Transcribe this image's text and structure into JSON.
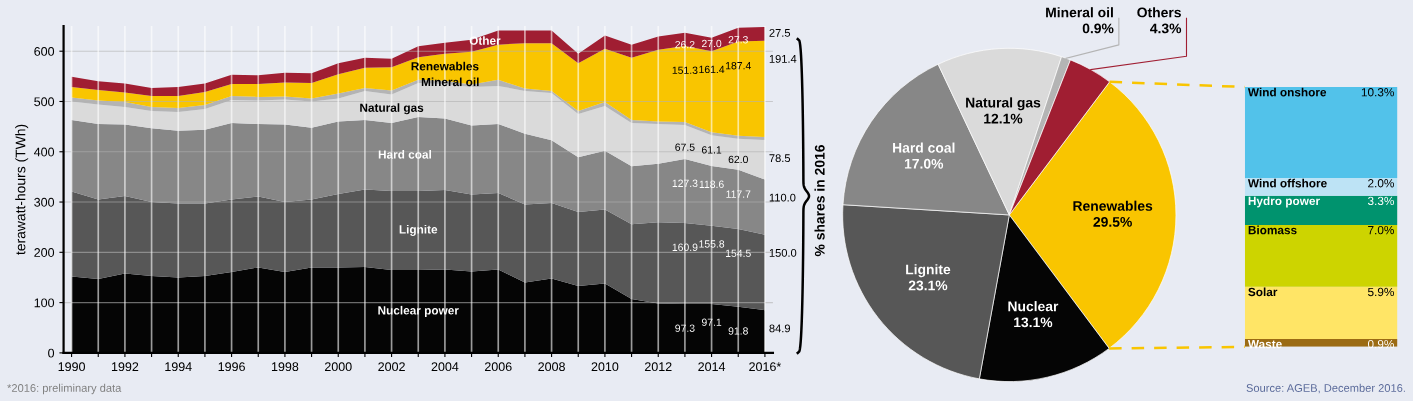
{
  "chart_data": [
    {
      "type": "area",
      "stacked": true,
      "ylabel": "terawatt-hours (TWh)",
      "grid": true,
      "legend": false,
      "categories": [
        "1990",
        null,
        "1992",
        null,
        "1994",
        null,
        "1996",
        null,
        "1998",
        null,
        "2000",
        null,
        "2002",
        null,
        "2004",
        null,
        "2006",
        null,
        "2008",
        null,
        "2010",
        null,
        "2012",
        null,
        "2014",
        null,
        "2016*"
      ],
      "ylim": [
        0,
        650
      ],
      "yticks": [
        0,
        100,
        200,
        300,
        400,
        500,
        600
      ],
      "series": [
        {
          "name": "Nuclear power",
          "color": "#050505",
          "values": [
            152,
            147,
            158,
            153,
            150,
            153,
            161,
            170,
            161,
            170,
            170,
            171,
            165,
            165,
            166,
            162,
            166,
            140,
            148,
            133,
            138,
            107,
            98,
            97.3,
            97.1,
            91.8,
            84.9
          ],
          "value_labels": [
            null,
            null,
            null,
            null,
            null,
            null,
            null,
            null,
            null,
            null,
            null,
            null,
            null,
            null,
            null,
            null,
            null,
            null,
            null,
            null,
            null,
            null,
            null,
            "97.3",
            "97.1",
            "91.8",
            "84.9"
          ]
        },
        {
          "name": "Lignite",
          "color": "#575757",
          "values": [
            169,
            158,
            154,
            147,
            147,
            144,
            144,
            141,
            139,
            135,
            146,
            154,
            157,
            157,
            158,
            153,
            152,
            155,
            150,
            147,
            147,
            149,
            162,
            160.9,
            155.8,
            154.5,
            150.0
          ],
          "value_labels": [
            null,
            null,
            null,
            null,
            null,
            null,
            null,
            null,
            null,
            null,
            null,
            null,
            null,
            null,
            null,
            null,
            null,
            null,
            null,
            null,
            null,
            null,
            null,
            "160.9",
            "155.8",
            "154.5",
            "150.0"
          ]
        },
        {
          "name": "Hard coal",
          "color": "#878787",
          "values": [
            142,
            150,
            142,
            147,
            145,
            147,
            152,
            144,
            154,
            143,
            144,
            138,
            135,
            147,
            142,
            137,
            137,
            141,
            125,
            109,
            117,
            115,
            116,
            127.3,
            118.6,
            117.7,
            110.0
          ],
          "value_labels": [
            null,
            null,
            null,
            null,
            null,
            null,
            null,
            null,
            null,
            null,
            null,
            null,
            null,
            null,
            null,
            null,
            null,
            null,
            null,
            null,
            null,
            null,
            null,
            "127.3",
            "118.6",
            "117.7",
            "110.0"
          ]
        },
        {
          "name": "Natural gas",
          "color": "#dadada",
          "values": [
            37,
            39,
            35,
            34,
            37,
            41,
            46,
            47,
            50,
            52,
            46,
            58,
            57,
            68,
            69,
            77,
            76,
            85,
            94,
            86,
            89,
            86,
            79,
            67.5,
            61.1,
            62.0,
            78.5
          ],
          "value_labels": [
            null,
            null,
            null,
            null,
            null,
            null,
            null,
            null,
            null,
            null,
            null,
            null,
            null,
            null,
            null,
            null,
            null,
            null,
            null,
            null,
            null,
            null,
            null,
            "67.5",
            "61.1",
            "62.0",
            "78.5"
          ]
        },
        {
          "name": "Mineral oil",
          "color": "#b4b4b4",
          "values": [
            8,
            8,
            10,
            8,
            8,
            8,
            8,
            7,
            6,
            6,
            10,
            6,
            8,
            6,
            6,
            5,
            12,
            5,
            4,
            6,
            8,
            6,
            5,
            6,
            6,
            6,
            6
          ]
        },
        {
          "name": "Renewables",
          "color": "#f9c500",
          "values": [
            21,
            21,
            19,
            22,
            24,
            26,
            24,
            26,
            28,
            31,
            38,
            40,
            46,
            45,
            54,
            65,
            70,
            90,
            95,
            95,
            106,
            124,
            143,
            151.3,
            161.4,
            187.4,
            191.4
          ],
          "value_labels": [
            null,
            null,
            null,
            null,
            null,
            null,
            null,
            null,
            null,
            null,
            null,
            null,
            null,
            null,
            null,
            null,
            null,
            null,
            null,
            null,
            null,
            null,
            null,
            "151.3",
            "161.4",
            "187.4",
            "191.4"
          ]
        },
        {
          "name": "Other",
          "color": "#a01e32",
          "values": [
            20,
            17,
            18,
            16,
            18,
            17,
            18,
            17,
            19,
            19,
            22,
            20,
            17,
            22,
            22,
            24,
            28,
            25,
            25,
            19,
            26,
            26,
            26,
            26.2,
            27.0,
            27.3,
            27.5
          ],
          "value_labels": [
            null,
            null,
            null,
            null,
            null,
            null,
            null,
            null,
            null,
            null,
            null,
            null,
            null,
            null,
            null,
            null,
            null,
            null,
            null,
            null,
            null,
            null,
            null,
            "26.2",
            "27.0",
            "27.3",
            "27.5"
          ]
        }
      ],
      "annotations": [
        "*2016: preliminary data"
      ]
    },
    {
      "type": "pie",
      "categories": [
        "Renewables",
        "Nuclear",
        "Lignite",
        "Hard coal",
        "Natural gas",
        "Mineral oil",
        "Others"
      ],
      "values": [
        29.5,
        13.1,
        23.1,
        17.0,
        12.1,
        0.9,
        4.3
      ],
      "value_labels": [
        "29.5%",
        "13.1%",
        "23.1%",
        "17.0%",
        "12.1%",
        "0.9%",
        "4.3%"
      ],
      "colors": [
        "#f9c500",
        "#050505",
        "#575757",
        "#878787",
        "#dadada",
        "#b4b4b4",
        "#a01e32"
      ],
      "annotations": [
        "% shares in 2016"
      ]
    },
    {
      "type": "bar",
      "stacked": true,
      "categories": [
        null
      ],
      "series": [
        {
          "name": "Waste",
          "color": "#9b6b14",
          "values": [
            0.9
          ],
          "value_labels": [
            "0.9%"
          ]
        },
        {
          "name": "Solar",
          "color": "#ffe566",
          "values": [
            5.9
          ],
          "value_labels": [
            "5.9%"
          ]
        },
        {
          "name": "Biomass",
          "color": "#cdd400",
          "values": [
            7.0
          ],
          "value_labels": [
            "7.0%"
          ]
        },
        {
          "name": "Hydro power",
          "color": "#00936e",
          "values": [
            3.3
          ],
          "value_labels": [
            "3.3%"
          ]
        },
        {
          "name": "Wind offshore",
          "color": "#bde3f5",
          "values": [
            2.0
          ],
          "value_labels": [
            "2.0%"
          ]
        },
        {
          "name": "Wind onshore",
          "color": "#52c2ea",
          "values": [
            10.3
          ],
          "value_labels": [
            "10.3%"
          ]
        }
      ],
      "annotations": [
        "Source: AGEB, December 2016."
      ]
    }
  ]
}
